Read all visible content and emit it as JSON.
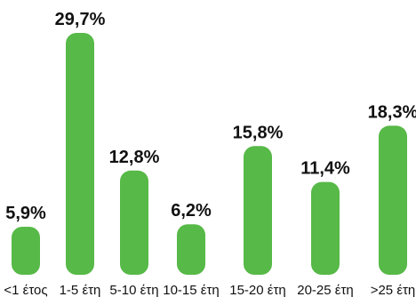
{
  "chart_data": {
    "type": "bar",
    "title": "",
    "xlabel": "",
    "ylabel": "",
    "categories": [
      "<1 έτος",
      "1-5 έτη",
      "5-10 έτη",
      "10-15 έτη",
      "15-20 έτη",
      "20-25 έτη",
      ">25 έτη"
    ],
    "values": [
      5.9,
      29.7,
      12.8,
      6.2,
      15.8,
      11.4,
      18.3
    ],
    "value_labels": [
      "5,9%",
      "29,7%",
      "12,8%",
      "6,2%",
      "15,8%",
      "11,4%",
      "18,3%"
    ],
    "ylim": [
      0,
      29.7
    ],
    "grid": false,
    "legend": "none",
    "bar_color": "#57b947"
  }
}
